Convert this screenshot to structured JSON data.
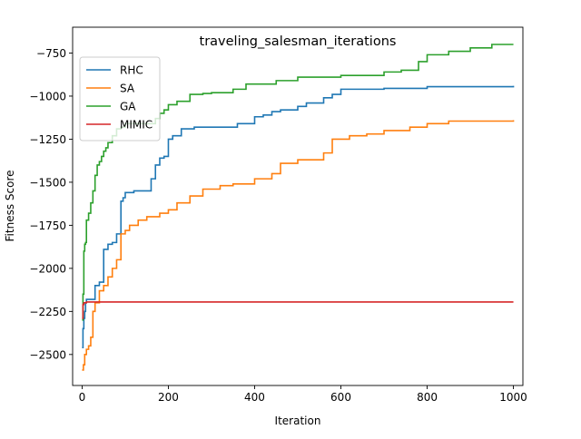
{
  "chart_data": {
    "type": "line",
    "title": "traveling_salesman_iterations",
    "xlabel": "Iteration",
    "ylabel": "Fitness Score",
    "xlim": [
      -22,
      1022
    ],
    "ylim": [
      -2680,
      -600
    ],
    "xticks": [
      0,
      200,
      400,
      600,
      800,
      1000
    ],
    "yticks": [
      -2500,
      -2250,
      -2000,
      -1750,
      -1500,
      -1250,
      -1000,
      -750
    ],
    "xtick_labels": [
      "0",
      "200",
      "400",
      "600",
      "800",
      "1000"
    ],
    "ytick_labels": [
      "−2500",
      "−2250",
      "−2000",
      "−1750",
      "−1500",
      "−1250",
      "−1000",
      "−750"
    ],
    "grid": false,
    "legend_position": "upper-left",
    "series": [
      {
        "name": "RHC",
        "color": "#1f77b4",
        "x": [
          0,
          2,
          4,
          6,
          8,
          10,
          20,
          30,
          40,
          50,
          60,
          70,
          80,
          90,
          95,
          100,
          110,
          120,
          130,
          160,
          170,
          180,
          190,
          200,
          210,
          230,
          260,
          300,
          360,
          400,
          420,
          440,
          460,
          500,
          520,
          560,
          580,
          600,
          700,
          800,
          1000
        ],
        "y": [
          -2460,
          -2350,
          -2290,
          -2250,
          -2200,
          -2180,
          -2180,
          -2100,
          -2080,
          -1890,
          -1860,
          -1850,
          -1800,
          -1610,
          -1590,
          -1560,
          -1560,
          -1550,
          -1550,
          -1480,
          -1400,
          -1360,
          -1350,
          -1250,
          -1230,
          -1190,
          -1180,
          -1180,
          -1160,
          -1120,
          -1110,
          -1090,
          -1080,
          -1060,
          -1040,
          -1010,
          -990,
          -960,
          -955,
          -945,
          -940
        ]
      },
      {
        "name": "SA",
        "color": "#ff7f0e",
        "x": [
          0,
          3,
          6,
          10,
          15,
          20,
          25,
          30,
          40,
          50,
          60,
          70,
          80,
          90,
          100,
          110,
          130,
          150,
          180,
          200,
          220,
          250,
          280,
          320,
          350,
          400,
          440,
          460,
          500,
          560,
          580,
          620,
          660,
          700,
          760,
          800,
          850,
          1000
        ],
        "y": [
          -2590,
          -2560,
          -2500,
          -2470,
          -2450,
          -2400,
          -2250,
          -2200,
          -2130,
          -2100,
          -2050,
          -2000,
          -1950,
          -1800,
          -1780,
          -1750,
          -1720,
          -1700,
          -1680,
          -1660,
          -1620,
          -1580,
          -1540,
          -1520,
          -1510,
          -1480,
          -1450,
          -1390,
          -1370,
          -1330,
          -1250,
          -1230,
          -1220,
          -1200,
          -1180,
          -1160,
          -1145,
          -1140
        ]
      },
      {
        "name": "GA",
        "color": "#2ca02c",
        "x": [
          0,
          2,
          4,
          6,
          8,
          10,
          15,
          20,
          25,
          30,
          35,
          40,
          45,
          50,
          55,
          60,
          70,
          80,
          90,
          100,
          110,
          120,
          150,
          170,
          180,
          190,
          200,
          220,
          250,
          280,
          300,
          350,
          380,
          400,
          450,
          500,
          600,
          700,
          740,
          780,
          800,
          850,
          900,
          950,
          1000
        ],
        "y": [
          -2300,
          -2150,
          -1900,
          -1860,
          -1850,
          -1720,
          -1680,
          -1620,
          -1550,
          -1460,
          -1400,
          -1380,
          -1350,
          -1320,
          -1300,
          -1270,
          -1230,
          -1190,
          -1180,
          -1160,
          -1160,
          -1160,
          -1160,
          -1130,
          -1100,
          -1080,
          -1050,
          -1030,
          -990,
          -985,
          -980,
          -960,
          -930,
          -930,
          -910,
          -890,
          -880,
          -860,
          -850,
          -800,
          -760,
          -740,
          -720,
          -700,
          -700
        ]
      },
      {
        "name": "MIMIC",
        "color": "#d62728",
        "x": [
          0,
          2,
          4,
          6,
          10,
          1000
        ],
        "y": [
          -2290,
          -2210,
          -2200,
          -2200,
          -2195,
          -2195
        ]
      }
    ]
  }
}
